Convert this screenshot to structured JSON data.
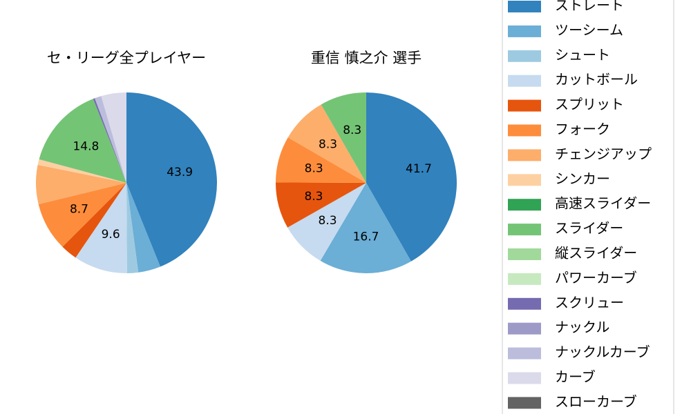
{
  "chart_data": [
    {
      "type": "pie",
      "title": "セ・リーグ全プレイヤー",
      "categories": [
        "ストレート",
        "ツーシーム",
        "シュート",
        "カットボール",
        "スプリット",
        "フォーク",
        "チェンジアップ",
        "シンカー",
        "高速スライダー",
        "スライダー",
        "縦スライダー",
        "パワーカーブ",
        "スクリュー",
        "ナックル",
        "ナックルカーブ",
        "カーブ",
        "スローカーブ"
      ],
      "colors": [
        "#3182bd",
        "#6baed6",
        "#9ecae1",
        "#c6dbef",
        "#e6550d",
        "#fd8d3c",
        "#fdae6b",
        "#fdd0a2",
        "#31a354",
        "#74c476",
        "#a1d99b",
        "#c7e9c0",
        "#756bb1",
        "#9e9ac8",
        "#bcbddc",
        "#dadaeb",
        "#636363"
      ],
      "values": [
        43.9,
        4,
        2,
        9.6,
        3,
        8.7,
        7,
        1,
        0,
        14.8,
        0,
        0,
        0.3,
        0,
        1.2,
        4.5,
        0
      ]
    },
    {
      "type": "pie",
      "title": "重信 慎之介  選手",
      "categories": [
        "ストレート",
        "ツーシーム",
        "シュート",
        "カットボール",
        "スプリット",
        "フォーク",
        "チェンジアップ",
        "シンカー",
        "高速スライダー",
        "スライダー",
        "縦スライダー",
        "パワーカーブ",
        "スクリュー",
        "ナックル",
        "ナックルカーブ",
        "カーブ",
        "スローカーブ"
      ],
      "colors": [
        "#3182bd",
        "#6baed6",
        "#9ecae1",
        "#c6dbef",
        "#e6550d",
        "#fd8d3c",
        "#fdae6b",
        "#fdd0a2",
        "#31a354",
        "#74c476",
        "#a1d99b",
        "#c7e9c0",
        "#756bb1",
        "#9e9ac8",
        "#bcbddc",
        "#dadaeb",
        "#636363"
      ],
      "values": [
        41.7,
        16.7,
        0,
        8.3,
        8.3,
        8.3,
        8.3,
        0,
        0,
        8.3,
        0,
        0,
        0,
        0,
        0,
        0,
        0
      ]
    }
  ]
}
